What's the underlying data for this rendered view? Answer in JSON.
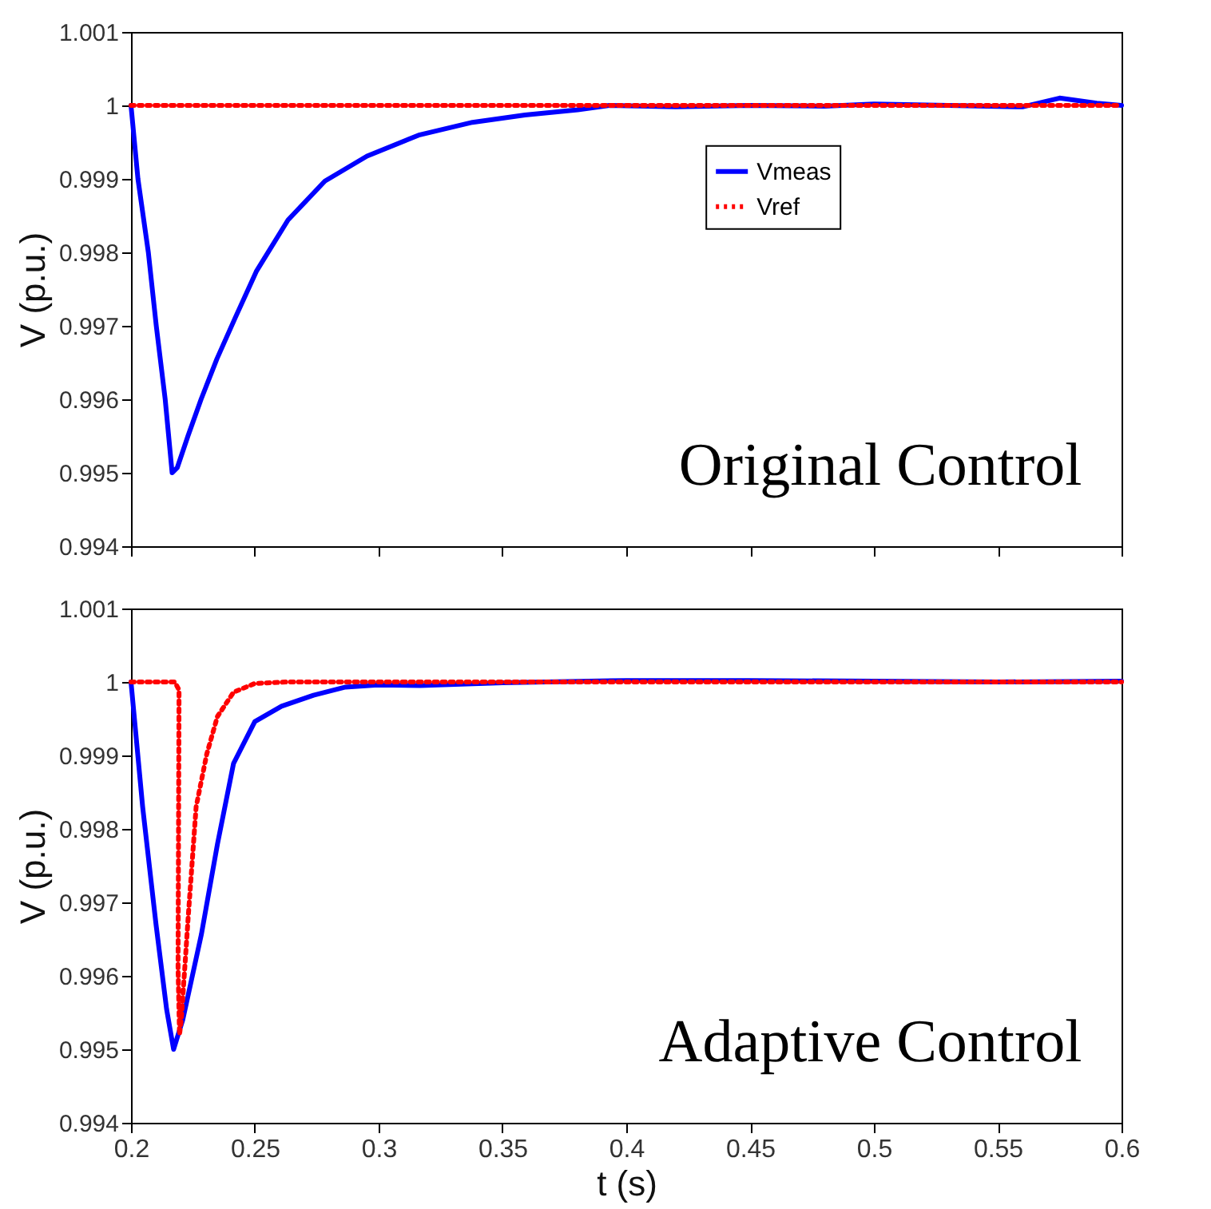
{
  "chart_data": [
    {
      "type": "line",
      "ylabel": "V (p.u.)",
      "annotations": [
        "Original Control"
      ],
      "xlim": [
        0.2,
        0.6
      ],
      "xticks": [
        0.2,
        0.25,
        0.3,
        0.35,
        0.4,
        0.45,
        0.5,
        0.55,
        0.6
      ],
      "ylim": [
        0.994,
        1.001
      ],
      "yticks": [
        0.994,
        0.995,
        0.996,
        0.997,
        0.998,
        0.999,
        1,
        1.001
      ],
      "tick_labels": "y",
      "grid": false,
      "legend": "right",
      "series": [
        {
          "name": "Vmeas",
          "color": "#0000ff",
          "line_style": "solid",
          "x": [
            0.2,
            0.2028,
            0.207,
            0.2102,
            0.2138,
            0.2166,
            0.2187,
            0.223,
            0.2283,
            0.2347,
            0.2421,
            0.2506,
            0.2634,
            0.2783,
            0.2953,
            0.3166,
            0.3379,
            0.3591,
            0.3804,
            0.3932,
            0.42,
            0.45,
            0.48,
            0.5,
            0.53,
            0.56,
            0.575,
            0.59,
            0.6
          ],
          "values": [
            1.0,
            0.999,
            0.998,
            0.997,
            0.996,
            0.995,
            0.99507,
            0.9955,
            0.996,
            0.99655,
            0.99711,
            0.99774,
            0.99844,
            0.99897,
            0.99931,
            0.9996,
            0.99977,
            0.99987,
            0.99994,
            1.0,
            0.99998,
            1.0,
            0.99999,
            1.00002,
            1.0,
            0.99998,
            1.0001,
            1.00003,
            1.0
          ]
        },
        {
          "name": "Vref",
          "color": "#ff0000",
          "line_style": "dotted",
          "x": [
            0.2,
            0.6
          ],
          "values": [
            1.0,
            1.0
          ]
        }
      ]
    },
    {
      "type": "line",
      "ylabel": "V (p.u.)",
      "xlabel": "t (s)",
      "annotations": [
        "Adaptive Control"
      ],
      "xlim": [
        0.2,
        0.6
      ],
      "xticks": [
        0.2,
        0.25,
        0.3,
        0.35,
        0.4,
        0.45,
        0.5,
        0.55,
        0.6
      ],
      "ylim": [
        0.994,
        1.001
      ],
      "yticks": [
        0.994,
        0.995,
        0.996,
        0.997,
        0.998,
        0.999,
        1,
        1.001
      ],
      "grid": false,
      "legend": "right",
      "series": [
        {
          "name": "Vmeas",
          "color": "#0000ff",
          "line_style": "solid",
          "x": [
            0.2,
            0.2047,
            0.2101,
            0.2144,
            0.2172,
            0.2209,
            0.2284,
            0.2349,
            0.2414,
            0.25,
            0.2608,
            0.2737,
            0.2866,
            0.2996,
            0.3168,
            0.35,
            0.4,
            0.45,
            0.5,
            0.55,
            0.6
          ],
          "values": [
            1.0,
            0.9983,
            0.9967,
            0.99554,
            0.995,
            0.9954,
            0.99656,
            0.99779,
            0.99889,
            0.99946,
            0.99967,
            0.99982,
            0.99993,
            0.99996,
            0.99995,
            0.99999,
            1.00002,
            1.00002,
            1.00001,
            1.0,
            1.00001
          ]
        },
        {
          "name": "Vref",
          "color": "#ff0000",
          "line_style": "dotted",
          "x": [
            0.2,
            0.2177,
            0.2194,
            0.219,
            0.2196,
            0.2203,
            0.2231,
            0.2263,
            0.2306,
            0.2349,
            0.2414,
            0.25,
            0.2629,
            0.6
          ],
          "values": [
            1.0,
            1.0,
            0.99989,
            0.99612,
            0.9952,
            0.9954,
            0.9968,
            0.9983,
            0.99902,
            0.99953,
            0.99986,
            0.99998,
            1.0,
            1.0
          ]
        }
      ]
    }
  ]
}
